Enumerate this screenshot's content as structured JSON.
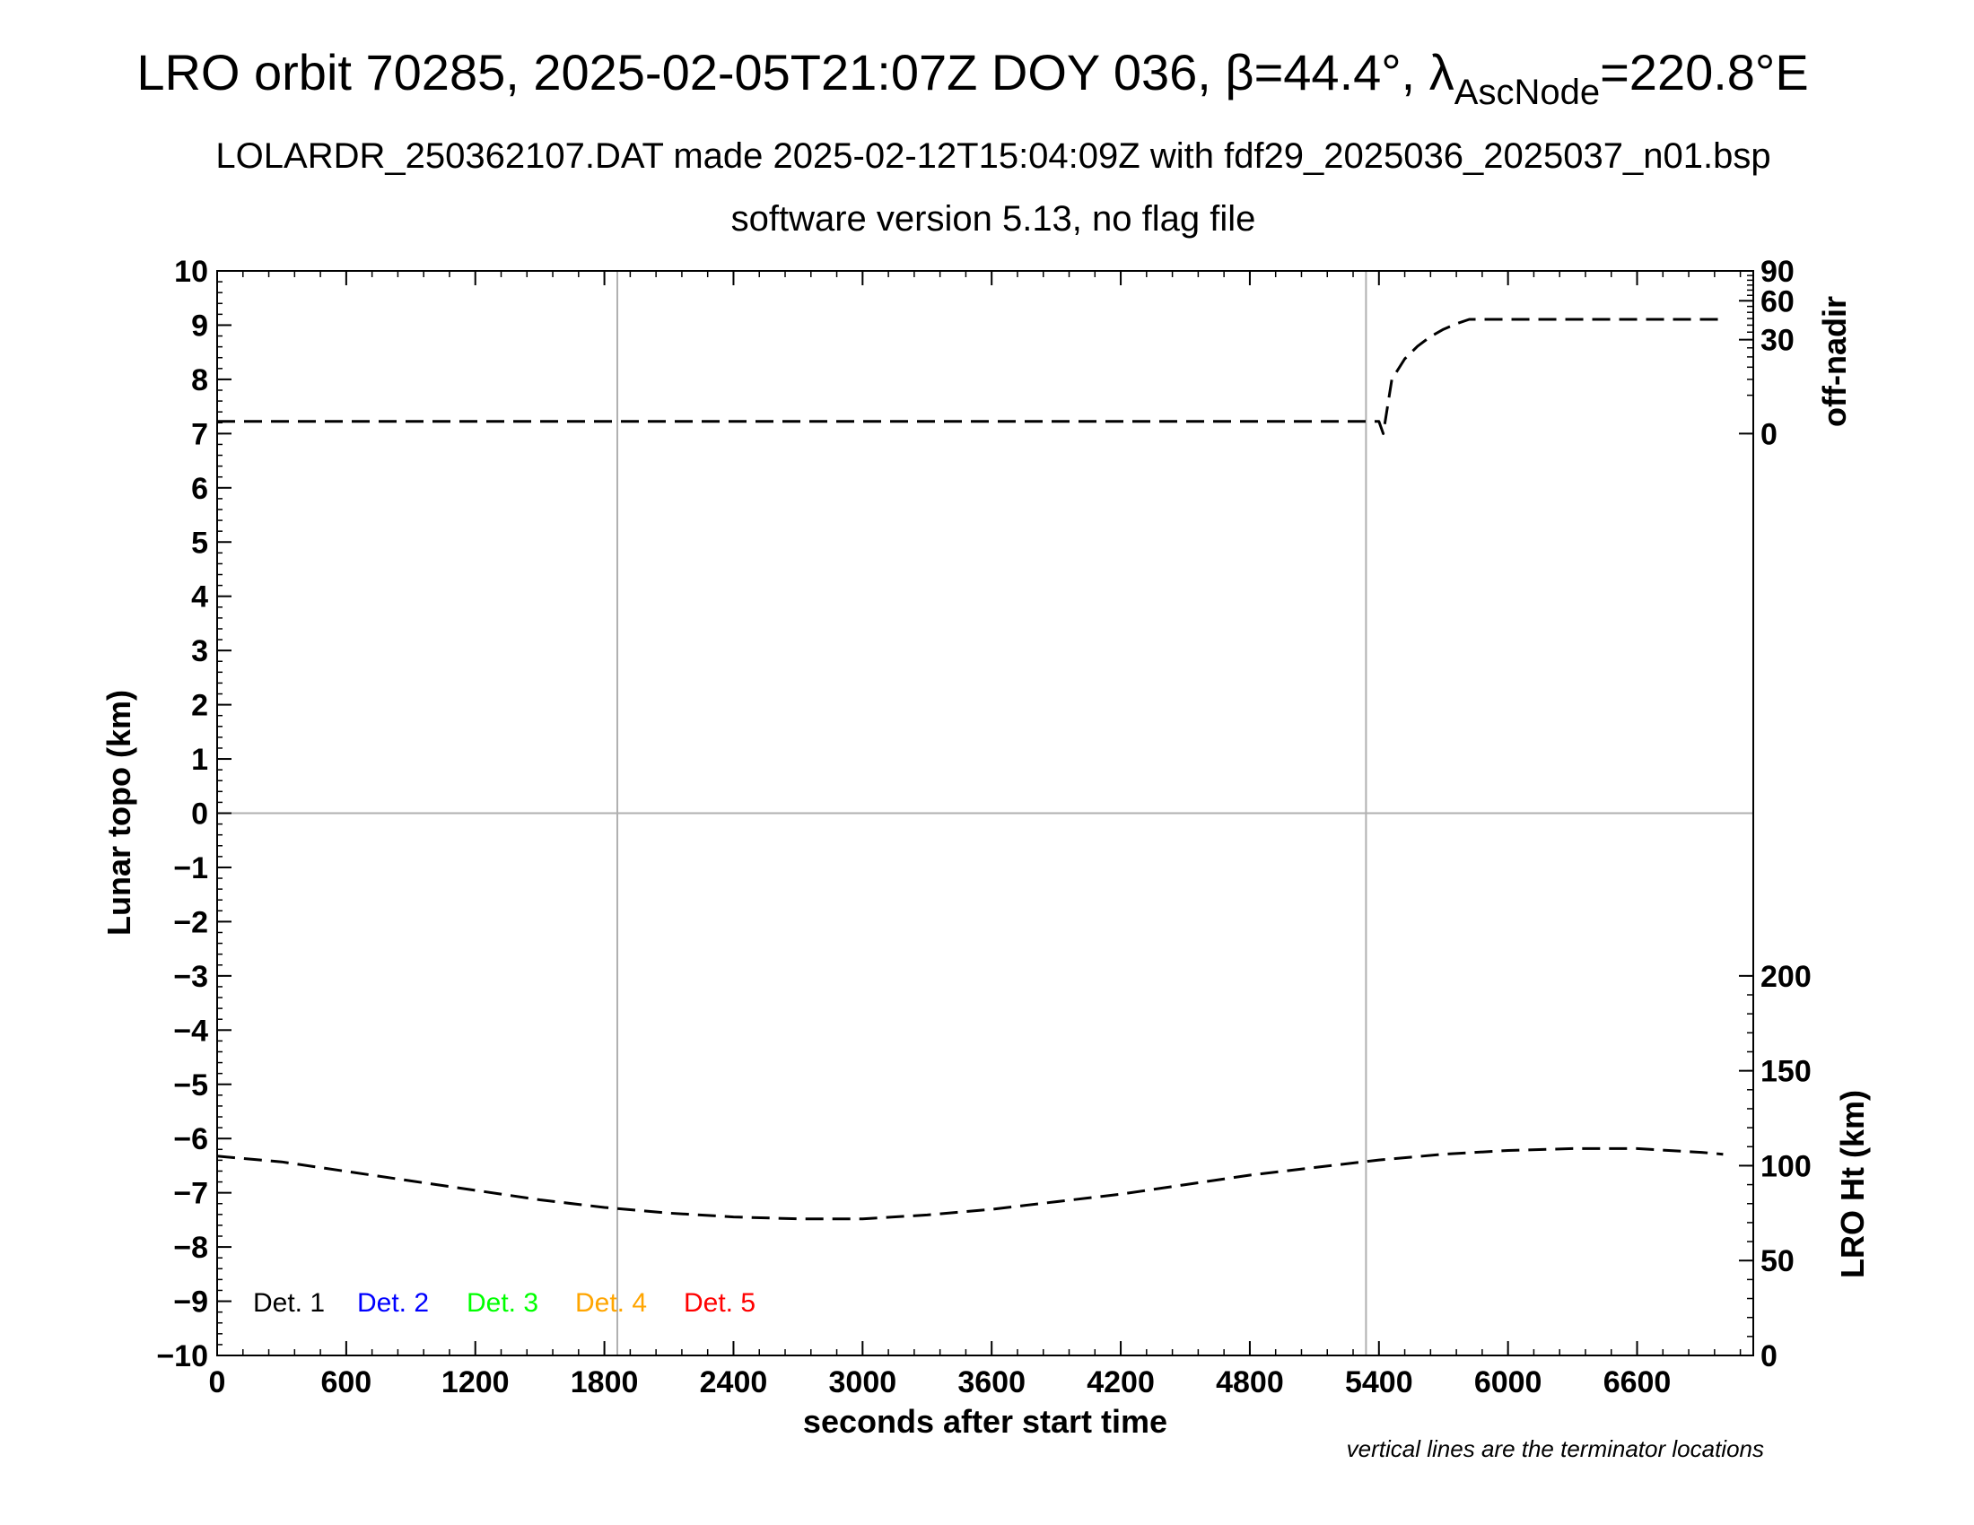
{
  "chart_data": {
    "type": "line",
    "title": {
      "main": "LRO orbit 70285, 2025-02-05T21:07Z DOY 036, β=44.4°, λ",
      "sub": "AscNode",
      "tail": "=220.8°E"
    },
    "subtitle_1": "LOLARDR_250362107.DAT made 2025-02-12T15:04:09Z with fdf29_2025036_2025037_n01.bsp",
    "subtitle_2": "software version 5.13, no flag file",
    "xlabel": "seconds after start time",
    "ylabel": "Lunar topo (km)",
    "right_label_top": "off-nadir",
    "right_label_bottom": "LRO Ht (km)",
    "footnote": "vertical lines are the terminator locations",
    "xlim": [
      0,
      7140
    ],
    "ylim": [
      -10,
      10
    ],
    "x_ticks": [
      0,
      600,
      1200,
      1800,
      2400,
      3000,
      3600,
      4200,
      4800,
      5400,
      6000,
      6600
    ],
    "y_ticks": [
      10,
      9,
      8,
      7,
      6,
      5,
      4,
      3,
      2,
      1,
      0,
      -1,
      -2,
      -3,
      -4,
      -5,
      -6,
      -7,
      -8,
      -9,
      -10
    ],
    "y_tick_labels": [
      "10",
      "9",
      "8",
      "7",
      "6",
      "5",
      "4",
      "3",
      "2",
      "1",
      "0",
      "−1",
      "−2",
      "−3",
      "−4",
      "−5",
      "−6",
      "−7",
      "−8",
      "−9",
      "−10"
    ],
    "offnadir_axis": {
      "ticks": [
        90,
        60,
        30,
        0
      ]
    },
    "height_axis": {
      "ylim": [
        0,
        240
      ],
      "ticks": [
        200,
        150,
        100,
        50,
        0
      ]
    },
    "terminator_x": [
      1860,
      5340
    ],
    "legend": [
      {
        "label": "Det. 1",
        "color": "#000000"
      },
      {
        "label": "Det. 2",
        "color": "#0000ff"
      },
      {
        "label": "Det. 3",
        "color": "#00ff00"
      },
      {
        "label": "Det. 4",
        "color": "#ffa500"
      },
      {
        "label": "Det. 5",
        "color": "#ff0000"
      }
    ],
    "series": [
      {
        "axis": "off-nadir",
        "x": [
          0,
          600,
          1200,
          1800,
          2400,
          3000,
          3600,
          4200,
          4800,
          5400,
          5420,
          5460,
          5520,
          5580,
          5640,
          5700,
          5760,
          5820,
          5880,
          6000,
          6600,
          7000
        ],
        "values": [
          0.5,
          0.5,
          0.5,
          0.5,
          0.5,
          0.5,
          0.5,
          0.5,
          0.5,
          0.5,
          0,
          10,
          19,
          26,
          32,
          37,
          41,
          44.4,
          44.4,
          44.4,
          44.4,
          44.4
        ]
      },
      {
        "axis": "LRO Ht (km)",
        "x": [
          0,
          300,
          600,
          900,
          1200,
          1500,
          1800,
          2100,
          2400,
          2700,
          2800,
          3000,
          3300,
          3600,
          3900,
          4200,
          4500,
          4800,
          5100,
          5400,
          5700,
          6000,
          6300,
          6600,
          6900,
          7000
        ],
        "values": [
          105,
          102,
          97,
          92,
          87,
          82,
          78,
          75,
          73,
          72,
          72,
          72,
          74,
          77,
          81,
          85,
          90,
          95,
          99,
          103,
          106,
          108,
          109,
          109,
          107,
          106
        ]
      }
    ]
  }
}
